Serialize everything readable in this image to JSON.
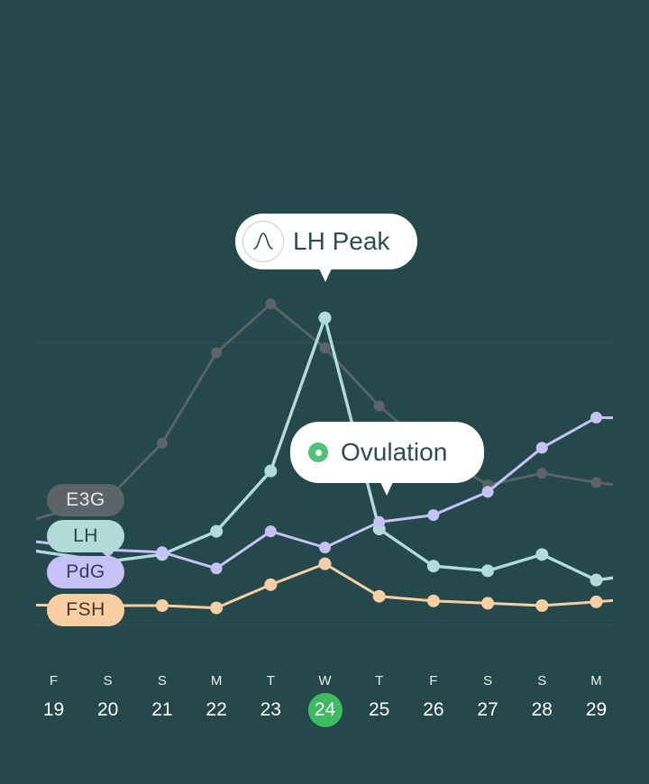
{
  "chart_data": {
    "type": "line",
    "x": [
      19,
      20,
      21,
      22,
      23,
      24,
      25,
      26,
      27,
      28,
      29
    ],
    "day_letters": [
      "F",
      "S",
      "S",
      "M",
      "T",
      "W",
      "T",
      "F",
      "S",
      "S",
      "M"
    ],
    "selected_day": 24,
    "grid": false,
    "legend_placement": "left",
    "series": [
      {
        "name": "E3G",
        "color": "#5c6469",
        "values": [
          null,
          23,
          35,
          54.5,
          65,
          55.5,
          43,
          33,
          26,
          28.5,
          26.5
        ]
      },
      {
        "name": "LH",
        "color": "#b2dcd9",
        "values": [
          null,
          9.5,
          11,
          16,
          29,
          62,
          16.5,
          8.5,
          7.5,
          11,
          5.5
        ]
      },
      {
        "name": "PdG",
        "color": "#c6c2f8",
        "values": [
          null,
          12,
          11.5,
          8,
          16,
          12.5,
          18,
          19.5,
          24.5,
          34,
          40.5
        ]
      },
      {
        "name": "FSH",
        "color": "#f8cfa3",
        "values": [
          null,
          0,
          0,
          -0.5,
          4.5,
          9,
          2,
          1,
          0.5,
          0,
          0.8
        ]
      }
    ],
    "annotations": [
      {
        "label": "LH Peak",
        "day": 24,
        "series": "LH"
      },
      {
        "label": "Ovulation",
        "day": 25,
        "series": "LH"
      }
    ]
  },
  "icons": {
    "lh_peak": "peak-curve-icon",
    "ovulation": "ovulation-dot-icon"
  },
  "colors": {
    "background": "#25484a",
    "selected_day": "#3dbb60",
    "ovulation_dot": "#52c27b"
  }
}
